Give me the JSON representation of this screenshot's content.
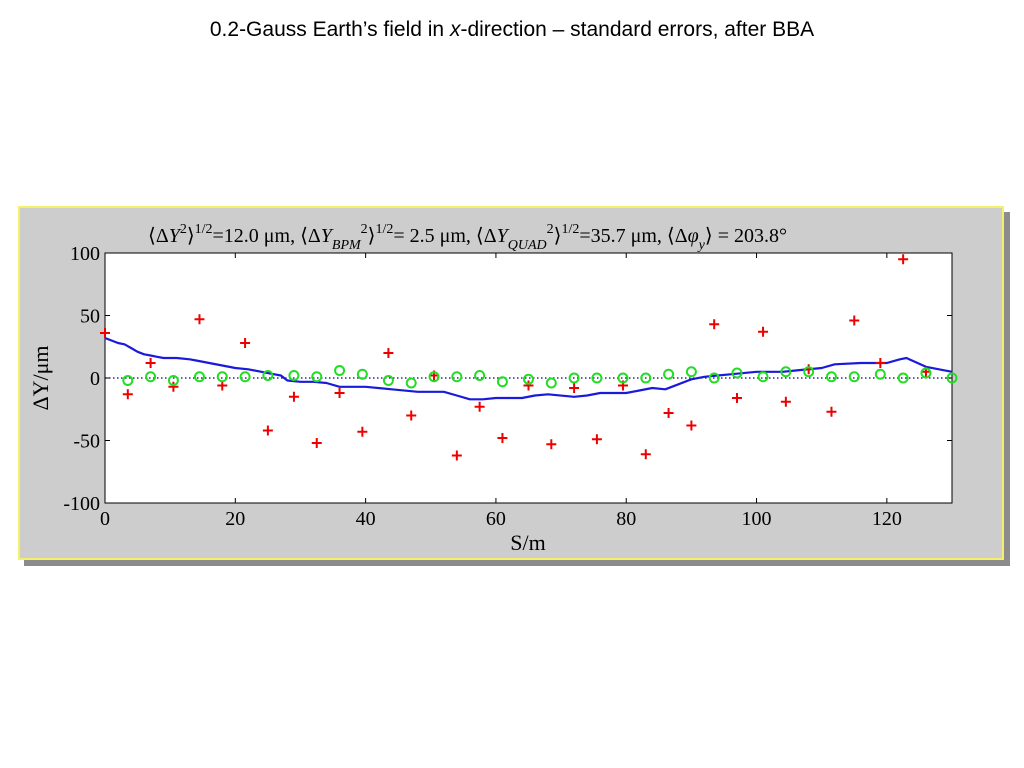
{
  "slide": {
    "title_before": "0.2-Gauss Earth’s field in ",
    "title_italic": "x",
    "title_after": "-direction – standard errors, after BBA"
  },
  "plot_header": {
    "dy_mean": "ΔY",
    "sup2": "2",
    "half": "1/2",
    "dy_value": "=12.0 μm, ",
    "bpm_sub": "BPM",
    "bpm_value": "= 2.5 μm, ",
    "quad_sub": "QUAD",
    "quad_value": "=35.7 μm, ",
    "phi": "φ",
    "phi_sub": "y",
    "phi_value": " =  203.8°",
    "lbrack": "⟨",
    "rbrack": "⟩",
    "delta": "Δ",
    "y": "Y"
  },
  "colors": {
    "line": "#1a1adc",
    "plus": "#ee0000",
    "circle": "#22dd22",
    "zero_line": "#000080",
    "panel": "#cdcdcd",
    "panel_border": "#f4f06a"
  },
  "chart_data": {
    "type": "scatter",
    "xlabel": "S/m",
    "ylabel": "ΔY/μm",
    "xlim": [
      0,
      130
    ],
    "ylim": [
      -100,
      100
    ],
    "xticks": [
      0,
      20,
      40,
      60,
      80,
      100,
      120
    ],
    "yticks": [
      -100,
      -50,
      0,
      50,
      100
    ],
    "grid": false,
    "zero_line": "dotted",
    "series": [
      {
        "kind": "line",
        "points": [
          [
            0,
            32
          ],
          [
            1,
            30
          ],
          [
            2,
            28
          ],
          [
            3,
            27
          ],
          [
            4,
            24
          ],
          [
            5,
            21
          ],
          [
            6,
            19
          ],
          [
            7,
            18
          ],
          [
            8,
            17
          ],
          [
            9,
            16
          ],
          [
            11,
            16
          ],
          [
            13,
            15
          ],
          [
            14,
            14
          ],
          [
            16,
            12
          ],
          [
            18,
            10
          ],
          [
            20,
            8
          ],
          [
            22,
            7
          ],
          [
            24,
            5
          ],
          [
            26,
            3
          ],
          [
            27,
            2
          ],
          [
            28,
            -2
          ],
          [
            30,
            -3
          ],
          [
            32,
            -3
          ],
          [
            34,
            -4
          ],
          [
            36,
            -7
          ],
          [
            38,
            -7
          ],
          [
            40,
            -7
          ],
          [
            44,
            -9
          ],
          [
            48,
            -11
          ],
          [
            52,
            -11
          ],
          [
            54,
            -14
          ],
          [
            56,
            -17
          ],
          [
            58,
            -17
          ],
          [
            60,
            -16
          ],
          [
            64,
            -16
          ],
          [
            66,
            -14
          ],
          [
            68,
            -13
          ],
          [
            72,
            -15
          ],
          [
            74,
            -14
          ],
          [
            76,
            -12
          ],
          [
            80,
            -12
          ],
          [
            82,
            -10
          ],
          [
            84,
            -8
          ],
          [
            86,
            -9
          ],
          [
            88,
            -5
          ],
          [
            90,
            -1
          ],
          [
            92,
            1
          ],
          [
            94,
            2
          ],
          [
            96,
            3
          ],
          [
            100,
            5
          ],
          [
            104,
            5
          ],
          [
            106,
            6
          ],
          [
            110,
            8
          ],
          [
            112,
            11
          ],
          [
            116,
            12
          ],
          [
            120,
            12
          ],
          [
            122,
            15
          ],
          [
            123,
            16
          ],
          [
            126,
            9
          ],
          [
            130,
            5
          ]
        ]
      },
      {
        "kind": "plus",
        "points": [
          [
            0,
            36
          ],
          [
            3.5,
            -13
          ],
          [
            7,
            12
          ],
          [
            10.5,
            -7
          ],
          [
            14.5,
            47
          ],
          [
            18,
            -6
          ],
          [
            21.5,
            28
          ],
          [
            25,
            -42
          ],
          [
            29,
            -15
          ],
          [
            32.5,
            -52
          ],
          [
            36,
            -12
          ],
          [
            39.5,
            -43
          ],
          [
            43.5,
            20
          ],
          [
            47,
            -30
          ],
          [
            50.5,
            2
          ],
          [
            54,
            -62
          ],
          [
            57.5,
            -23
          ],
          [
            61,
            -48
          ],
          [
            65,
            -6
          ],
          [
            68.5,
            -53
          ],
          [
            72,
            -8
          ],
          [
            75.5,
            -49
          ],
          [
            79.5,
            -6
          ],
          [
            83,
            -61
          ],
          [
            86.5,
            -28
          ],
          [
            90,
            -38
          ],
          [
            93.5,
            43
          ],
          [
            97,
            -16
          ],
          [
            101,
            37
          ],
          [
            104.5,
            -19
          ],
          [
            108,
            7
          ],
          [
            111.5,
            -27
          ],
          [
            115,
            46
          ],
          [
            119,
            12
          ],
          [
            122.5,
            95
          ],
          [
            126,
            5
          ]
        ]
      },
      {
        "kind": "circle",
        "points": [
          [
            3.5,
            -2
          ],
          [
            7,
            1
          ],
          [
            10.5,
            -2
          ],
          [
            14.5,
            1
          ],
          [
            18,
            1
          ],
          [
            21.5,
            1
          ],
          [
            25,
            2
          ],
          [
            29,
            2
          ],
          [
            32.5,
            1
          ],
          [
            36,
            6
          ],
          [
            39.5,
            3
          ],
          [
            43.5,
            -2
          ],
          [
            47,
            -4
          ],
          [
            50.5,
            1
          ],
          [
            54,
            1
          ],
          [
            57.5,
            2
          ],
          [
            61,
            -3
          ],
          [
            65,
            -1
          ],
          [
            68.5,
            -4
          ],
          [
            72,
            0
          ],
          [
            75.5,
            0
          ],
          [
            79.5,
            0
          ],
          [
            83,
            0
          ],
          [
            86.5,
            3
          ],
          [
            90,
            5
          ],
          [
            93.5,
            0
          ],
          [
            97,
            4
          ],
          [
            101,
            1
          ],
          [
            104.5,
            5
          ],
          [
            108,
            5
          ],
          [
            111.5,
            1
          ],
          [
            115,
            1
          ],
          [
            119,
            3
          ],
          [
            122.5,
            0
          ],
          [
            126,
            4
          ],
          [
            130,
            0
          ]
        ]
      }
    ]
  }
}
